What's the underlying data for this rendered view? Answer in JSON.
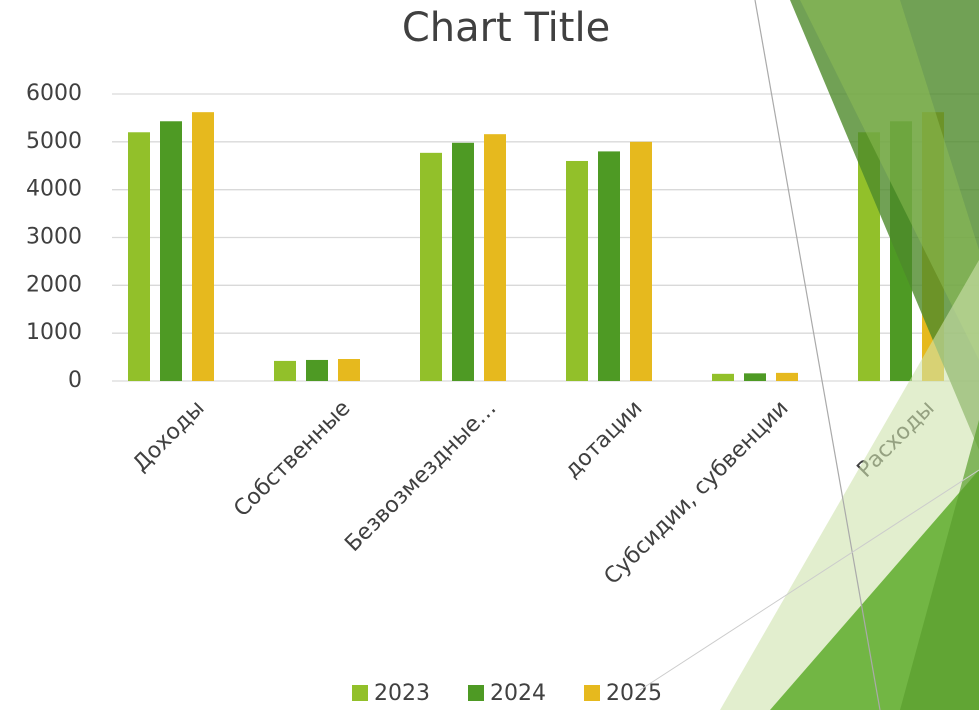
{
  "chart_data": {
    "type": "bar",
    "title": "Chart Title",
    "categories": [
      "Доходы",
      "Собственные",
      "Безвозмездные…",
      "дотации",
      "Субсидии, субвенции",
      "Расходы"
    ],
    "series": [
      {
        "name": "2023",
        "color": "#92c02a",
        "values": [
          5200,
          420,
          4770,
          4600,
          150,
          5200
        ]
      },
      {
        "name": "2024",
        "color": "#4e9a24",
        "values": [
          5430,
          440,
          4980,
          4800,
          160,
          5430
        ]
      },
      {
        "name": "2025",
        "color": "#e6b91e",
        "values": [
          5620,
          460,
          5160,
          5000,
          170,
          5620
        ]
      }
    ],
    "ylim": [
      0,
      6000
    ],
    "yticks": [
      0,
      1000,
      2000,
      3000,
      4000,
      5000,
      6000
    ],
    "grid": true,
    "legend": "bottom"
  }
}
